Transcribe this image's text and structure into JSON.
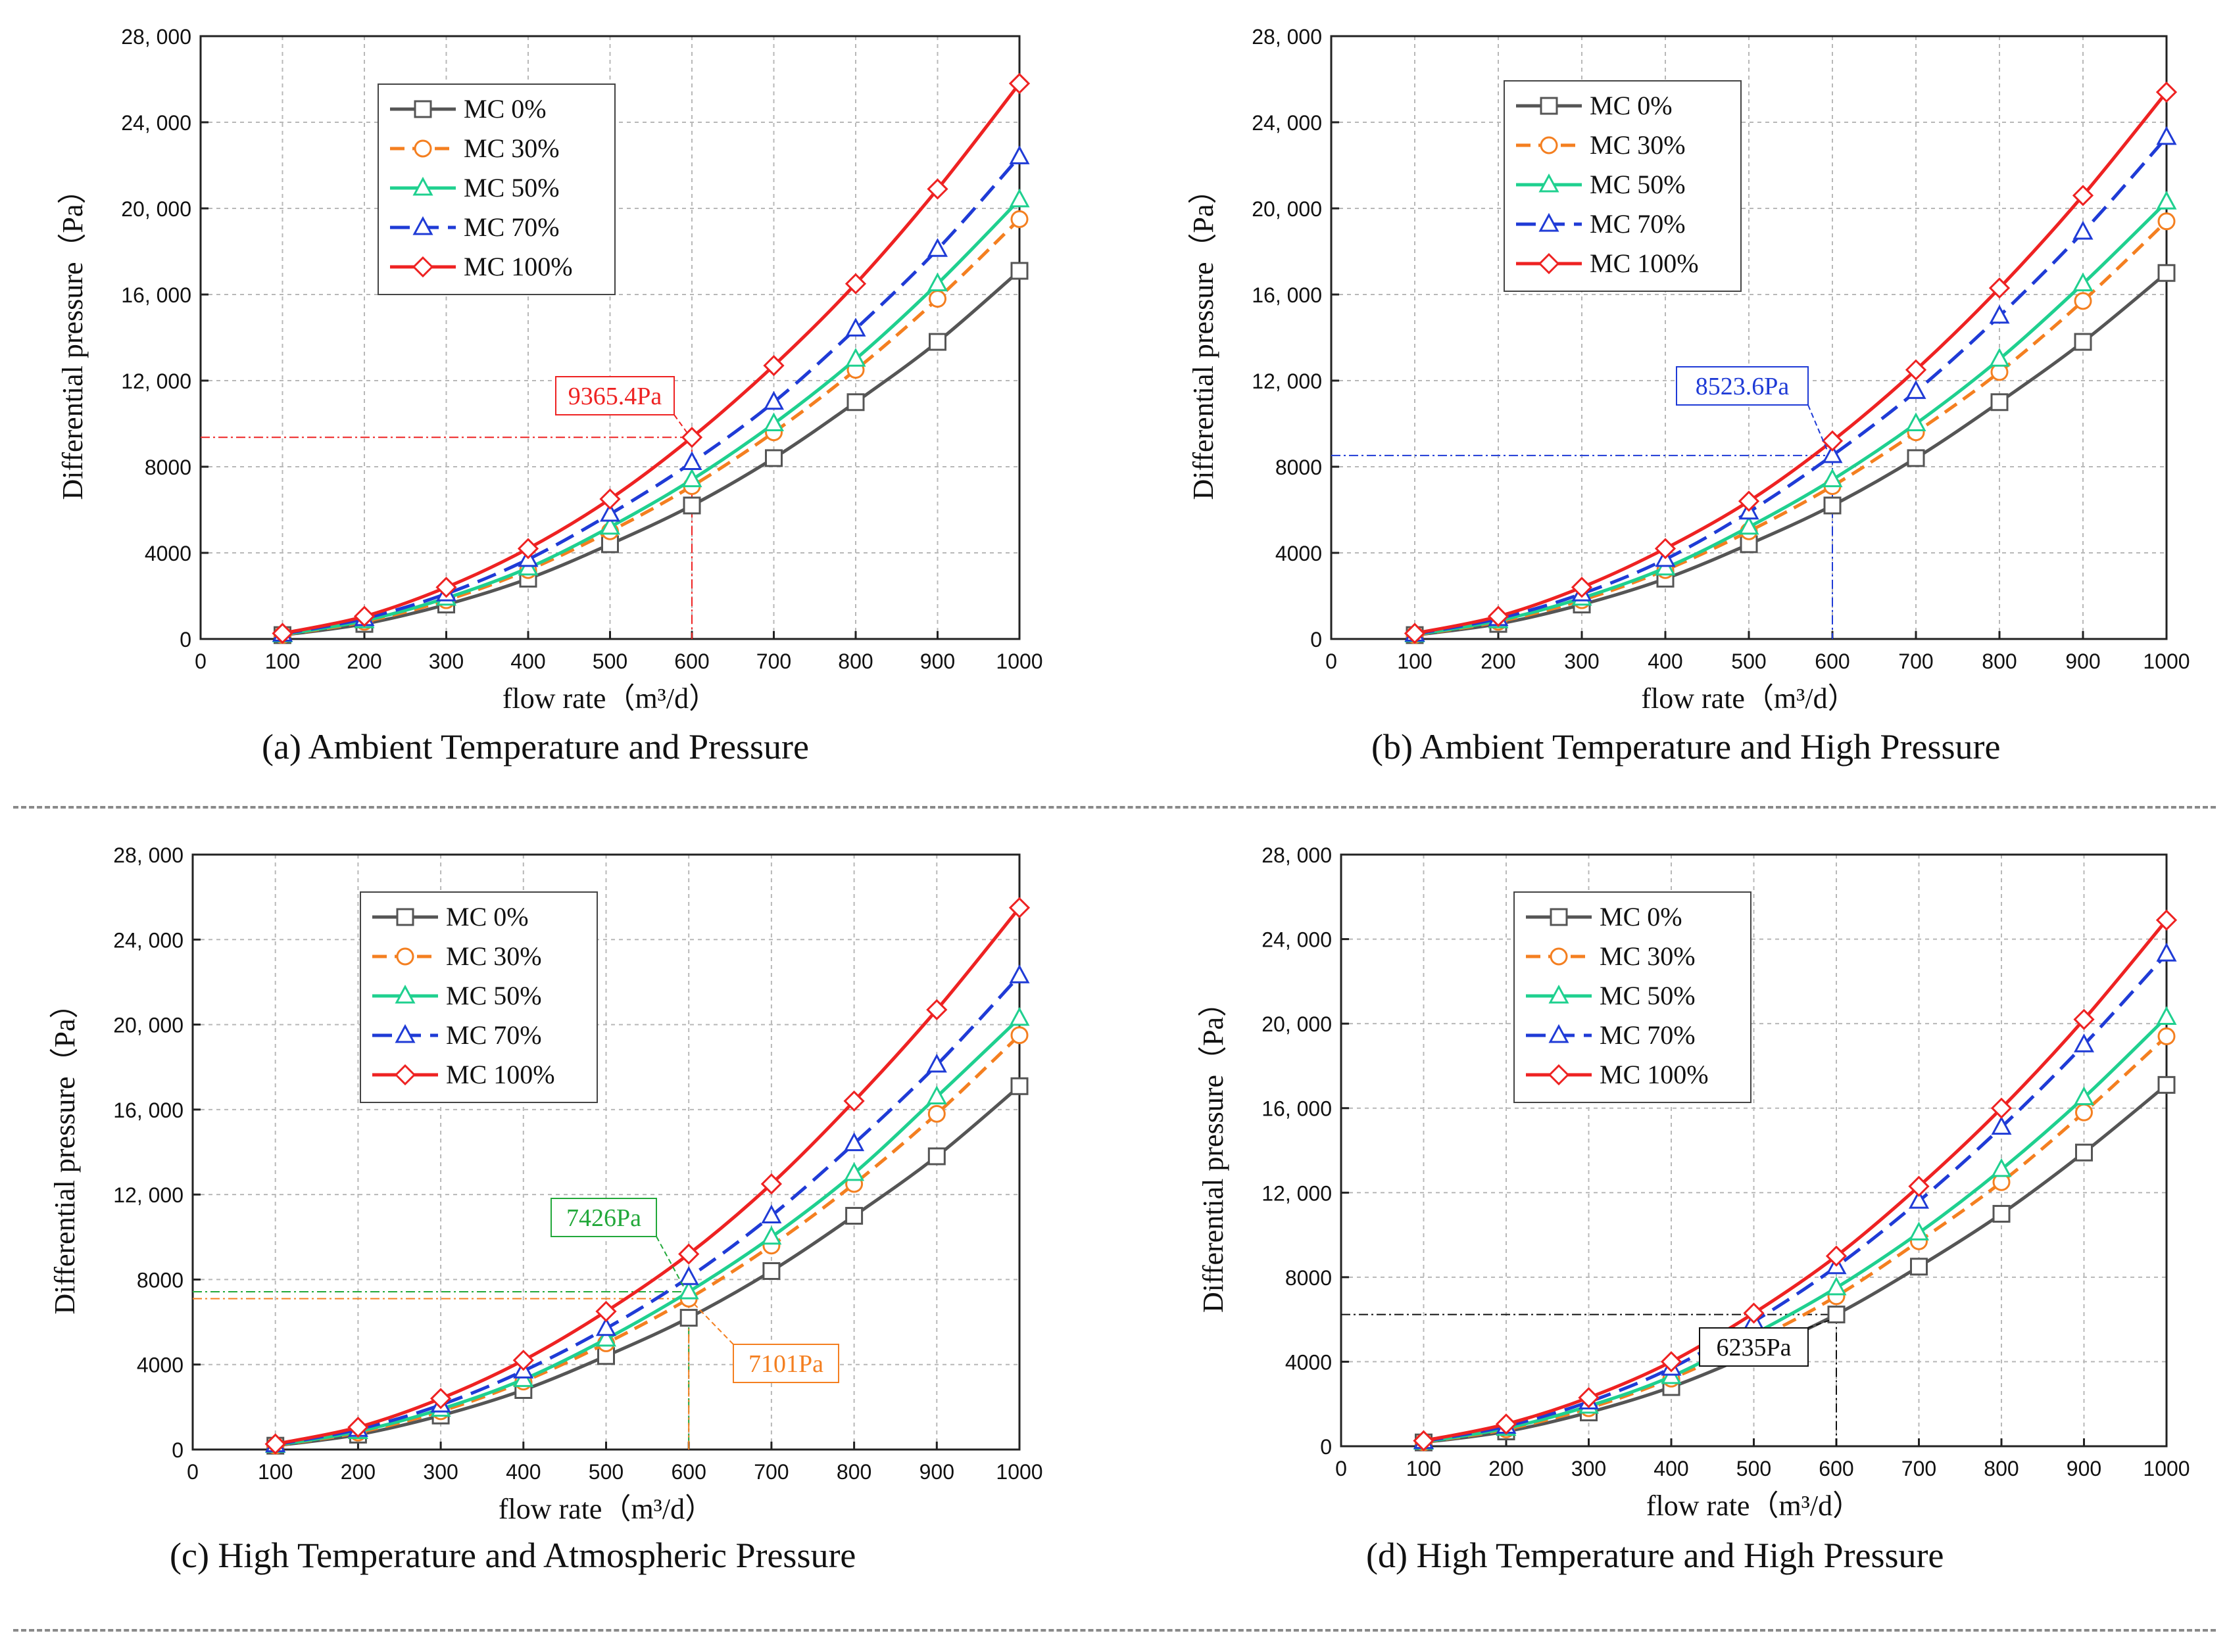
{
  "captions": {
    "a": "(a) Ambient Temperature and Pressure",
    "b": "(b) Ambient Temperature and High Pressure",
    "c": "(c) High Temperature and Atmospheric Pressure",
    "d": "(d) High Temperature and High Pressure"
  },
  "series_style": [
    {
      "name": "MC 0%",
      "color": "#555555",
      "marker": "square",
      "dash": "solid"
    },
    {
      "name": "MC 30%",
      "color": "#f47f20",
      "marker": "circle",
      "dash": "dash"
    },
    {
      "name": "MC 50%",
      "color": "#1fd08f",
      "marker": "triangle",
      "dash": "solid"
    },
    {
      "name": "MC 70%",
      "color": "#1f3bd6",
      "marker": "triangle",
      "dash": "longdash"
    },
    {
      "name": "MC 100%",
      "color": "#ee2222",
      "marker": "diamond",
      "dash": "solid"
    }
  ],
  "chart_data": [
    {
      "id": "a",
      "type": "line",
      "xlabel": "flow rate（m³/d）",
      "ylabel": "Differential pressure（Pa）",
      "xlim": [
        0,
        1000
      ],
      "ylim": [
        0,
        28000
      ],
      "xticks": [
        "0",
        "100",
        "200",
        "300",
        "400",
        "500",
        "600",
        "700",
        "800",
        "900",
        "1000"
      ],
      "yticks": [
        "0",
        "4000",
        "8000",
        "12,000",
        "16,000",
        "20,000",
        "24,000",
        "28,000"
      ],
      "x": [
        100,
        200,
        300,
        400,
        500,
        600,
        700,
        800,
        900,
        1000
      ],
      "series": [
        {
          "name": "MC 0%",
          "values": [
            180,
            700,
            1600,
            2800,
            4400,
            6200,
            8400,
            11000,
            13800,
            17100
          ]
        },
        {
          "name": "MC 30%",
          "values": [
            190,
            800,
            1800,
            3200,
            5000,
            7100,
            9600,
            12500,
            15800,
            19500
          ]
        },
        {
          "name": "MC 50%",
          "values": [
            200,
            850,
            1900,
            3300,
            5200,
            7400,
            10000,
            13000,
            16500,
            20400
          ]
        },
        {
          "name": "MC 70%",
          "values": [
            230,
            950,
            2100,
            3700,
            5800,
            8200,
            11000,
            14400,
            18100,
            22400
          ]
        },
        {
          "name": "MC 100%",
          "values": [
            260,
            1050,
            2400,
            4200,
            6500,
            9365,
            12700,
            16500,
            20900,
            25800
          ]
        }
      ],
      "annotations": [
        {
          "label": "9365.4Pa",
          "x": 600,
          "y": 9365.4,
          "color": "#ee2222"
        }
      ]
    },
    {
      "id": "b",
      "type": "line",
      "xlabel": "flow rate（m³/d）",
      "ylabel": "Differential pressure（Pa）",
      "xlim": [
        0,
        1000
      ],
      "ylim": [
        0,
        28000
      ],
      "xticks": [
        "0",
        "100",
        "200",
        "300",
        "400",
        "500",
        "600",
        "700",
        "800",
        "900",
        "1000"
      ],
      "yticks": [
        "0",
        "4000",
        "8000",
        "12,000",
        "16,000",
        "20,000",
        "24,000",
        "28,000"
      ],
      "x": [
        100,
        200,
        300,
        400,
        500,
        600,
        700,
        800,
        900,
        1000
      ],
      "series": [
        {
          "name": "MC 0%",
          "values": [
            180,
            700,
            1600,
            2800,
            4400,
            6200,
            8400,
            11000,
            13800,
            17000
          ]
        },
        {
          "name": "MC 30%",
          "values": [
            190,
            800,
            1800,
            3200,
            5000,
            7100,
            9600,
            12400,
            15700,
            19400
          ]
        },
        {
          "name": "MC 50%",
          "values": [
            200,
            850,
            1900,
            3300,
            5200,
            7400,
            10000,
            13000,
            16500,
            20300
          ]
        },
        {
          "name": "MC 70%",
          "values": [
            230,
            950,
            2100,
            3700,
            5900,
            8524,
            11500,
            15000,
            18900,
            23300
          ]
        },
        {
          "name": "MC 100%",
          "values": [
            260,
            1050,
            2400,
            4200,
            6400,
            9200,
            12500,
            16300,
            20600,
            25400
          ]
        }
      ],
      "annotations": [
        {
          "label": "8523.6Pa",
          "x": 600,
          "y": 8523.6,
          "color": "#1f3bd6"
        }
      ]
    },
    {
      "id": "c",
      "type": "line",
      "xlabel": "flow rate（m³/d）",
      "ylabel": "Differential pressure（Pa）",
      "xlim": [
        0,
        1000
      ],
      "ylim": [
        0,
        28000
      ],
      "xticks": [
        "0",
        "100",
        "200",
        "300",
        "400",
        "500",
        "600",
        "700",
        "800",
        "900",
        "1000"
      ],
      "yticks": [
        "0",
        "4000",
        "8000",
        "12,000",
        "16,000",
        "20,000",
        "24,000",
        "28,000"
      ],
      "x": [
        100,
        200,
        300,
        400,
        500,
        600,
        700,
        800,
        900,
        1000
      ],
      "series": [
        {
          "name": "MC 0%",
          "values": [
            180,
            700,
            1600,
            2800,
            4400,
            6200,
            8400,
            11000,
            13800,
            17100
          ]
        },
        {
          "name": "MC 30%",
          "values": [
            190,
            800,
            1800,
            3200,
            5000,
            7101,
            9600,
            12500,
            15800,
            19500
          ]
        },
        {
          "name": "MC 50%",
          "values": [
            200,
            850,
            1900,
            3300,
            5200,
            7426,
            10000,
            13000,
            16600,
            20300
          ]
        },
        {
          "name": "MC 70%",
          "values": [
            230,
            950,
            2100,
            3700,
            5700,
            8100,
            11000,
            14400,
            18100,
            22300
          ]
        },
        {
          "name": "MC 100%",
          "values": [
            260,
            1050,
            2400,
            4200,
            6500,
            9200,
            12500,
            16400,
            20700,
            25500
          ]
        }
      ],
      "annotations": [
        {
          "label": "7426Pa",
          "x": 600,
          "y": 7426,
          "color": "#22a83a"
        },
        {
          "label": "7101Pa",
          "x": 600,
          "y": 7101,
          "color": "#f47f20"
        }
      ]
    },
    {
      "id": "d",
      "type": "line",
      "xlabel": "flow rate（m³/d）",
      "ylabel": "Differential pressure（Pa）",
      "xlim": [
        0,
        1000
      ],
      "ylim": [
        0,
        28000
      ],
      "xticks": [
        "0",
        "100",
        "200",
        "300",
        "400",
        "500",
        "600",
        "700",
        "800",
        "900",
        "1000"
      ],
      "yticks": [
        "0",
        "4000",
        "8000",
        "12,000",
        "16,000",
        "20,000",
        "24,000",
        "28,000"
      ],
      "x": [
        100,
        200,
        300,
        400,
        500,
        600,
        700,
        800,
        900,
        1000
      ],
      "series": [
        {
          "name": "MC 0%",
          "values": [
            180,
            700,
            1600,
            2800,
            4400,
            6235,
            8500,
            11000,
            13900,
            17100
          ]
        },
        {
          "name": "MC 30%",
          "values": [
            190,
            800,
            1800,
            3200,
            5000,
            7100,
            9700,
            12500,
            15800,
            19400
          ]
        },
        {
          "name": "MC 50%",
          "values": [
            200,
            850,
            1900,
            3300,
            5300,
            7500,
            10100,
            13100,
            16500,
            20300
          ]
        },
        {
          "name": "MC 70%",
          "values": [
            230,
            950,
            2100,
            3700,
            5900,
            8500,
            11600,
            15100,
            19000,
            23300
          ]
        },
        {
          "name": "MC 100%",
          "values": [
            260,
            1050,
            2300,
            4000,
            6300,
            9000,
            12300,
            16000,
            20200,
            24900
          ]
        }
      ],
      "annotations": [
        {
          "label": "6235Pa",
          "x": 600,
          "y": 6235,
          "color": "#111111"
        }
      ]
    }
  ]
}
